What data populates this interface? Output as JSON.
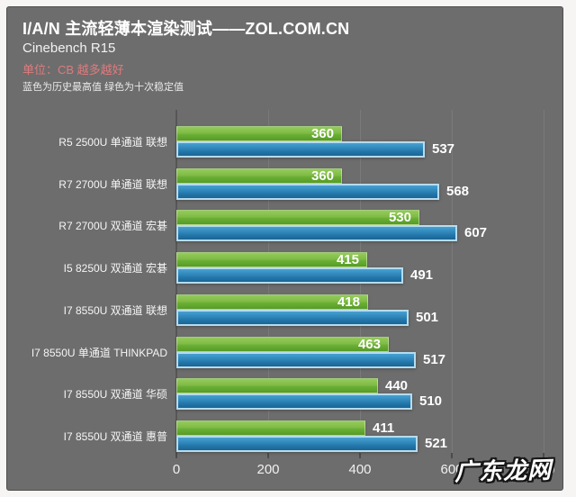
{
  "header": {
    "title": "I/A/N 主流轻薄本渲染测试——ZOL.COM.CN",
    "subtitle": "Cinebench R15",
    "unit_note": "单位：CB 越多越好",
    "legend_note": "蓝色为历史最高值 绿色为十次稳定值"
  },
  "watermark": "广东龙网",
  "chart_data": {
    "type": "bar",
    "orientation": "horizontal",
    "title": "I/A/N 主流轻薄本渲染测试——ZOL.COM.CN",
    "subtitle": "Cinebench R15",
    "unit": "CB",
    "categories": [
      "R5 2500U 单通道 联想",
      "R7 2700U 单通道 联想",
      "R7 2700U 双通道 宏碁",
      "I5 8250U 双通道 宏碁",
      "I7 8550U 双通道 联想",
      "I7 8550U 单通道 THINKPAD",
      "I7 8550U 双通道 华硕",
      "I7 8550U 双通道 惠普"
    ],
    "series": [
      {
        "name": "十次稳定值",
        "color": "#7cb944",
        "values": [
          360,
          360,
          530,
          415,
          418,
          463,
          440,
          411
        ],
        "label_placement": [
          "in",
          "in",
          "in",
          "in",
          "in",
          "in",
          "out",
          "out"
        ]
      },
      {
        "name": "历史最高值",
        "color": "#2d83b6",
        "values": [
          537,
          568,
          607,
          491,
          501,
          517,
          510,
          521
        ]
      }
    ],
    "x_axis": {
      "min": 0,
      "max": 800,
      "ticks": [
        0,
        200,
        400,
        600,
        800
      ],
      "tick_labels": [
        "0",
        "200",
        "400",
        "600",
        "800"
      ]
    },
    "grid": true,
    "value_labels": true,
    "legend_position": "header-note"
  }
}
